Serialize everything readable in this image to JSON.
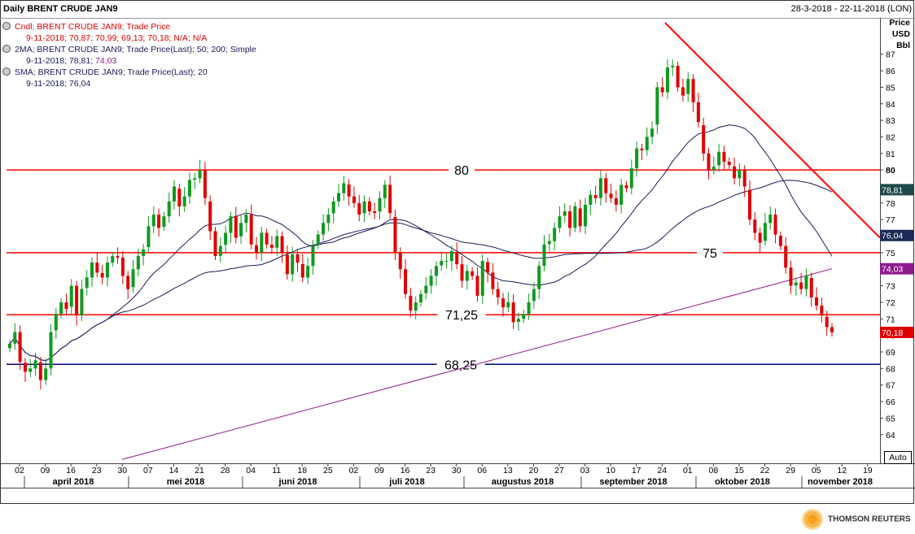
{
  "header": {
    "title": "Daily BRENT CRUDE JAN9",
    "date_range": "28-3-2018 - 22-11-2018 (LON)"
  },
  "legend": [
    {
      "line1": "Cndl; BRENT CRUDE JAN9; Trade Price",
      "line2": "9-11-2018; 70,87; 70,99; 69,13; 70,18; N/A; N/A",
      "color": "#e00000"
    },
    {
      "line1": "2MA; BRENT CRUDE JAN9; Trade Price(Last);  50; 200; Simple",
      "line2a": "9-11-2018; 78,81; ",
      "line2b": "74,03",
      "color": "#1a1a5a",
      "color_b": "#8e1a8e"
    },
    {
      "line1": "SMA; BRENT CRUDE JAN9; Trade Price(Last);  20",
      "line2": "9-11-2018; 76,04",
      "color": "#1a1a5a"
    }
  ],
  "axis_unit": [
    "Price",
    "USD",
    "Bbl"
  ],
  "auto_button": "Auto",
  "logo": "THOMSON REUTERS",
  "colors": {
    "up": "#0f9a1f",
    "down": "#e00000",
    "ma50": "#1a1a5a",
    "ma200": "#8e1a8e",
    "sma20": "#1a1a5a",
    "level": "#ff0000",
    "support": "#000080",
    "trend": "#ff0000"
  },
  "chart_data": {
    "type": "candlestick",
    "title": "Daily BRENT CRUDE JAN9",
    "ylabel": "Price USD Bbl",
    "ylim": [
      63,
      89
    ],
    "y_ticks": [
      64,
      65,
      66,
      67,
      68,
      69,
      70,
      71,
      72,
      73,
      74,
      75,
      76,
      77,
      78,
      79,
      80,
      81,
      82,
      83,
      84,
      85,
      86,
      87
    ],
    "x_tick_labels": [
      "02",
      "09",
      "16",
      "23",
      "30",
      "07",
      "14",
      "21",
      "28",
      "04",
      "11",
      "18",
      "25",
      "02",
      "09",
      "16",
      "23",
      "30",
      "06",
      "13",
      "20",
      "27",
      "03",
      "10",
      "17",
      "24",
      "01",
      "08",
      "15",
      "22",
      "29",
      "05",
      "12",
      "19"
    ],
    "month_labels": [
      "april 2018",
      "mei 2018",
      "juni 2018",
      "juli 2018",
      "augustus 2018",
      "september 2018",
      "oktober 2018",
      "november 2018"
    ],
    "horizontal_levels": [
      {
        "value": 80,
        "label": "80"
      },
      {
        "value": 75,
        "label": "75"
      },
      {
        "value": 71.25,
        "label": "71,25"
      },
      {
        "value": 68.25,
        "label": "68,25"
      }
    ],
    "trendline": {
      "from": [
        "2018-09-20",
        88.9
      ],
      "to": [
        "2018-11-22",
        75.9
      ]
    },
    "last_values": {
      "ma50": "78,81",
      "sma20": "76,04",
      "ma200": "74,03",
      "close": "70,18"
    },
    "close_series": [
      69.5,
      70.2,
      68.4,
      67.8,
      68.0,
      68.5,
      67.3,
      68.0,
      70.2,
      71.3,
      72.0,
      71.6,
      73.0,
      71.2,
      72.8,
      73.5,
      74.4,
      73.8,
      73.5,
      74.4,
      74.8,
      74.7,
      73.6,
      72.8,
      74.0,
      74.8,
      75.2,
      76.6,
      77.3,
      76.5,
      77.2,
      78.1,
      79.0,
      77.8,
      78.4,
      79.4,
      79.5,
      80.0,
      78.3,
      76.3,
      74.8,
      75.4,
      76.2,
      77.2,
      75.9,
      76.8,
      77.3,
      75.5,
      75.0,
      76.2,
      75.5,
      75.3,
      76.0,
      75.0,
      73.7,
      74.9,
      74.4,
      73.5,
      74.2,
      75.4,
      76.1,
      76.8,
      77.3,
      78.1,
      78.6,
      79.2,
      78.4,
      78.0,
      77.3,
      78.1,
      77.5,
      77.4,
      78.3,
      79.1,
      77.4,
      75.0,
      74.0,
      72.5,
      71.5,
      72.0,
      72.5,
      73.0,
      73.6,
      74.2,
      74.5,
      74.5,
      75.1,
      74.3,
      73.3,
      73.9,
      73.6,
      72.4,
      74.5,
      73.8,
      72.8,
      72.3,
      71.7,
      72.0,
      70.8,
      71.0,
      71.3,
      72.0,
      72.8,
      74.2,
      75.5,
      75.7,
      76.5,
      77.2,
      77.5,
      76.5,
      77.8,
      76.6,
      77.9,
      78.5,
      78.3,
      79.5,
      78.6,
      78.3,
      77.9,
      79.1,
      78.9,
      80.1,
      81.3,
      81.2,
      82.0,
      82.5,
      85.0,
      84.7,
      86.2,
      86.3,
      85.0,
      84.5,
      85.5,
      84.1,
      82.9,
      81.0,
      80.0,
      80.2,
      81.1,
      80.5,
      80.3,
      79.5,
      80.0,
      79.0,
      77.0,
      76.2,
      75.6,
      76.8,
      77.3,
      76.1,
      75.4,
      74.1,
      73.0,
      73.2,
      72.8,
      73.6,
      72.3,
      71.8,
      71.2,
      70.5,
      70.18
    ]
  }
}
